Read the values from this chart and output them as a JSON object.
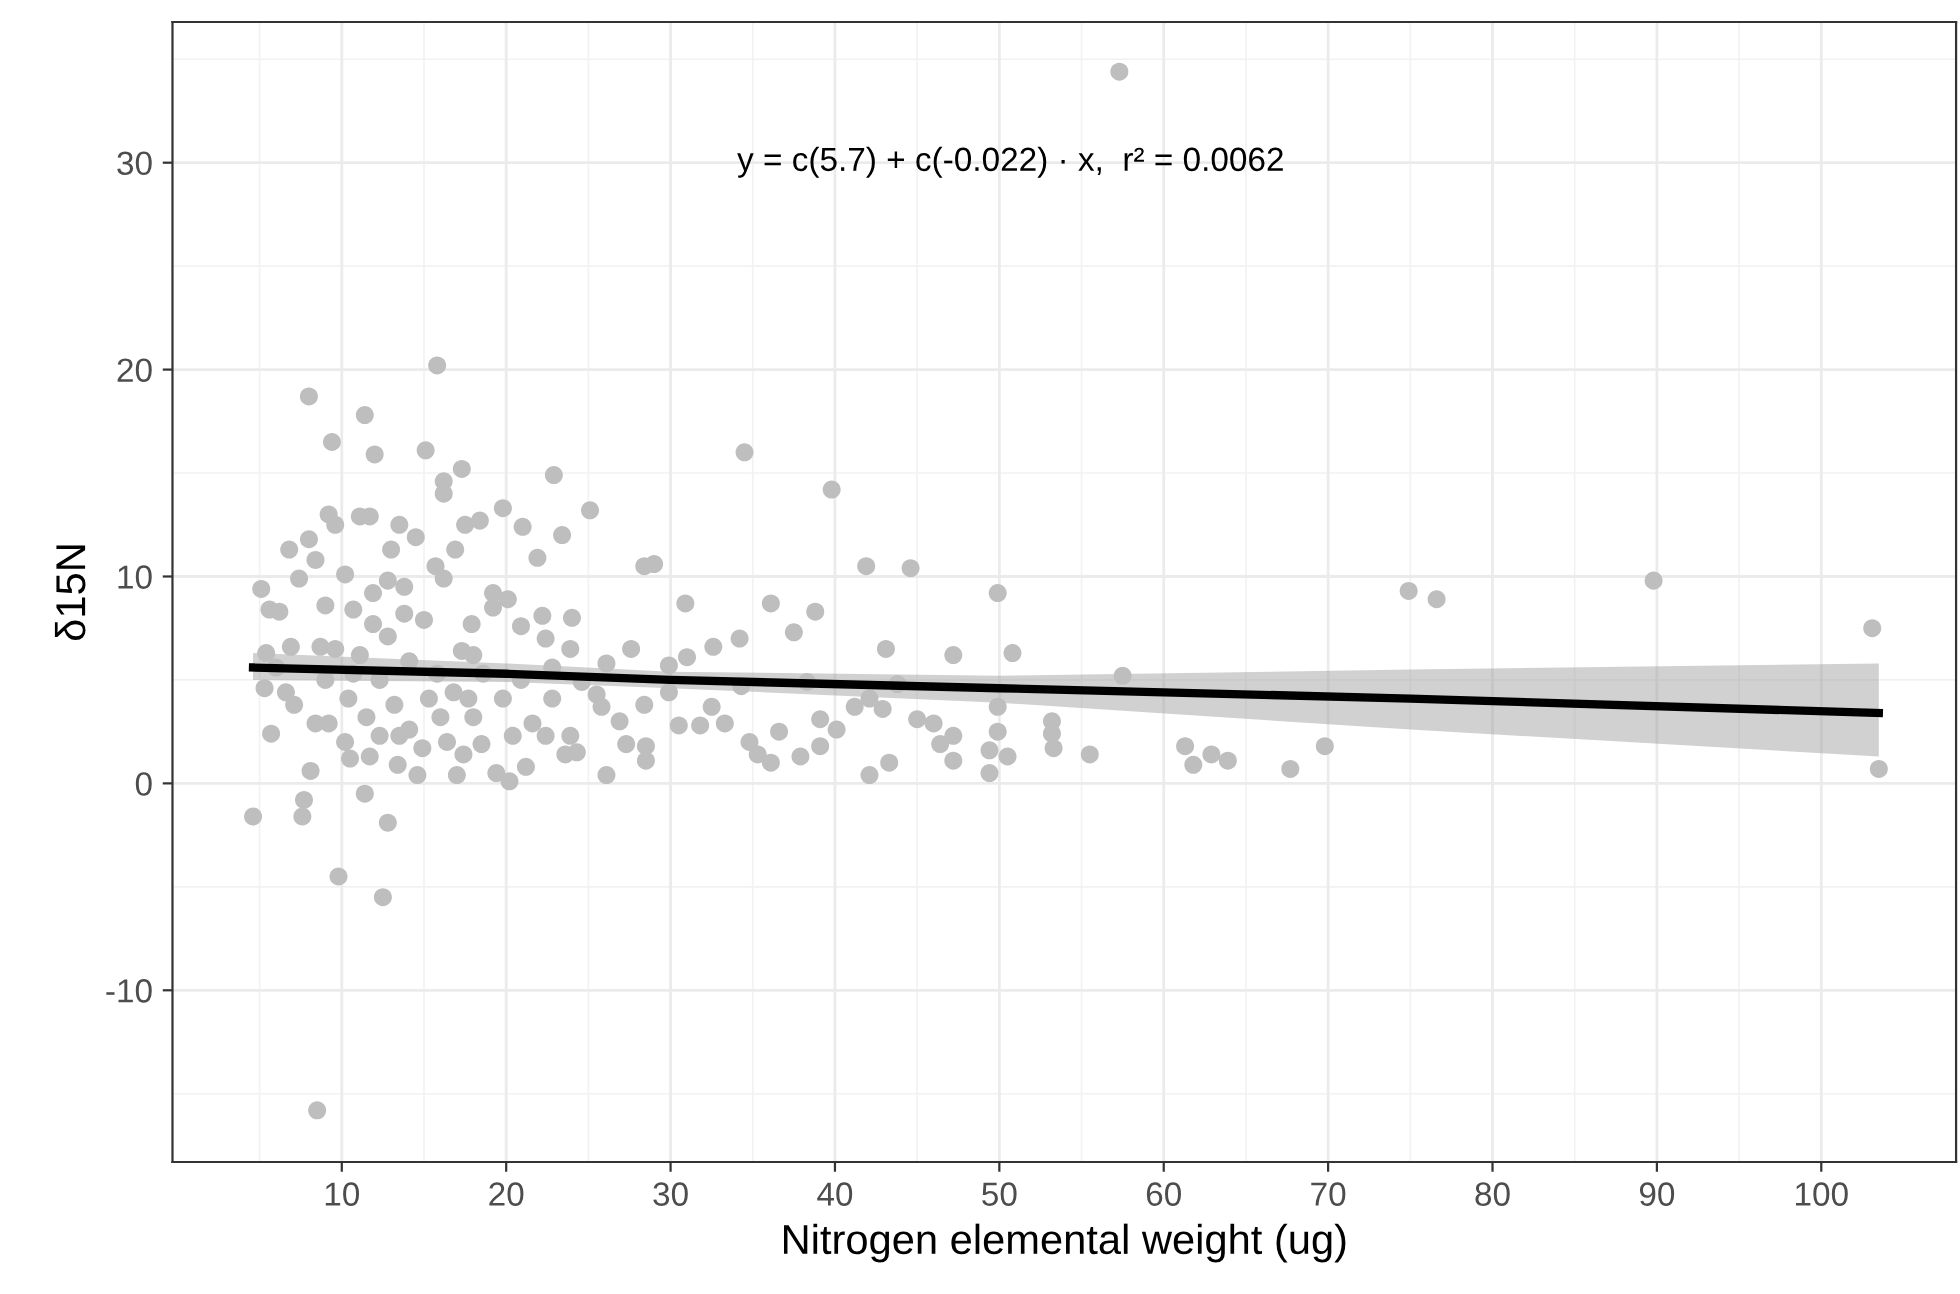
{
  "chart_data": {
    "type": "scatter",
    "xlabel": "Nitrogen elemental weight (ug)",
    "ylabel": "δ15N",
    "annotations": [
      "y = c(5.7) + c(-0.022) · x,  r² = 0.0062"
    ],
    "xlim": [
      -0.3,
      108.2
    ],
    "ylim": [
      -18.3,
      36.8
    ],
    "xticks": [
      10,
      20,
      30,
      40,
      50,
      60,
      70,
      80,
      90,
      100
    ],
    "yticks": [
      -10,
      0,
      10,
      20,
      30
    ],
    "grid": true,
    "marker": "circle",
    "series": [
      {
        "color": "#bebebe",
        "x": [
          4.6,
          8.5,
          8.0,
          11.4,
          15.8,
          9.4,
          12.0,
          15.1,
          17.3,
          16.2,
          16.2,
          22.9,
          25.1,
          19.8,
          21.0,
          23.4,
          21.9,
          34.5,
          39.8,
          57.3,
          41.9,
          44.6,
          49.9,
          74.9,
          76.6,
          89.8,
          103.1,
          103.5,
          57.5,
          69.8,
          67.7,
          63.9,
          62.9,
          61.8,
          61.3,
          55.5,
          53.3,
          53.2,
          53.2,
          50.8,
          49.9,
          49.9,
          49.4,
          49.4,
          50.5,
          47.2,
          47.2,
          47.2,
          46.4,
          46.0,
          45.0,
          43.1,
          43.3,
          42.1,
          42.9,
          42.1,
          38.8,
          37.5,
          36.1,
          30.9,
          28.4,
          29.0,
          34.2,
          32.6,
          39.1,
          37.9,
          36.1,
          40.1,
          39.1,
          34.8,
          35.3,
          33.3,
          31.8,
          30.5,
          28.5,
          28.5,
          26.1,
          27.3,
          26.9,
          32.5,
          36.6,
          41.2,
          43.8,
          38.3,
          34.3,
          29.9,
          31.0,
          27.6,
          26.1,
          25.5,
          24.6,
          23.9,
          24.0,
          22.2,
          20.1,
          19.2,
          19.2,
          20.9,
          22.4,
          23.9,
          24.3,
          23.6,
          21.2,
          20.2,
          19.4,
          21.6,
          20.4,
          18.5,
          17.4,
          17.0,
          14.6,
          13.4,
          11.7,
          10.5,
          10.2,
          11.4,
          12.8,
          7.7,
          7.6,
          12.5,
          9.8,
          8.1,
          5.7,
          5.3,
          5.4,
          5.1,
          5.6,
          6.2,
          6.8,
          7.4,
          8.0,
          8.4,
          9.2,
          9.6,
          10.2,
          11.1,
          11.7,
          13.0,
          12.8,
          13.8,
          13.5,
          14.5,
          15.7,
          16.2,
          17.5,
          18.4,
          16.9,
          15.0,
          17.9,
          17.3,
          11.9,
          10.7,
          9.0,
          8.7,
          6.9,
          6.0,
          7.1,
          8.4,
          9.0,
          10.4,
          11.5,
          12.3,
          13.2,
          14.1,
          15.3,
          16.0,
          16.4,
          17.7,
          18.6,
          19.8,
          15.8,
          14.1,
          11.1,
          11.9,
          12.8,
          13.8,
          18.0,
          20.9,
          22.8,
          18.0,
          14.9,
          12.3,
          9.2,
          6.6,
          9.6,
          10.7,
          13.5,
          16.8,
          22.4,
          22.8,
          25.8,
          28.4,
          29.9
        ],
        "values": [
          -1.6,
          -15.8,
          18.7,
          17.8,
          20.2,
          16.5,
          15.9,
          16.1,
          15.2,
          14.6,
          14.0,
          14.9,
          13.2,
          13.3,
          12.4,
          12.0,
          10.9,
          16.0,
          14.2,
          34.4,
          10.5,
          10.4,
          9.2,
          9.3,
          8.9,
          9.8,
          7.5,
          0.7,
          5.2,
          1.8,
          0.7,
          1.1,
          1.4,
          0.9,
          1.8,
          1.4,
          1.7,
          2.4,
          3.0,
          6.3,
          3.7,
          2.5,
          1.6,
          0.5,
          1.3,
          6.2,
          2.3,
          1.1,
          1.9,
          2.9,
          3.1,
          6.5,
          1.0,
          0.4,
          3.6,
          4.1,
          8.3,
          7.3,
          8.7,
          8.7,
          10.5,
          10.6,
          7.0,
          6.6,
          1.8,
          1.3,
          1.0,
          2.6,
          3.1,
          2.0,
          1.4,
          2.9,
          2.8,
          2.8,
          1.8,
          1.1,
          0.4,
          1.9,
          3.0,
          3.7,
          2.5,
          3.7,
          4.8,
          4.9,
          4.7,
          5.7,
          6.1,
          6.5,
          5.8,
          4.3,
          4.9,
          6.5,
          8.0,
          8.1,
          8.9,
          9.2,
          8.5,
          7.6,
          7.0,
          2.3,
          1.5,
          1.4,
          0.8,
          0.1,
          0.5,
          2.9,
          2.3,
          1.9,
          1.4,
          0.4,
          0.4,
          0.9,
          1.3,
          1.2,
          2.0,
          -0.5,
          -1.9,
          -0.8,
          -1.6,
          -5.5,
          -4.5,
          0.6,
          2.4,
          4.6,
          6.3,
          9.4,
          8.4,
          8.3,
          11.3,
          9.9,
          11.8,
          10.8,
          13.0,
          12.5,
          10.1,
          12.9,
          12.9,
          11.3,
          9.8,
          9.5,
          12.5,
          11.9,
          10.5,
          9.9,
          12.5,
          12.7,
          11.3,
          7.9,
          7.7,
          6.4,
          7.7,
          8.4,
          8.6,
          6.6,
          6.6,
          5.6,
          3.8,
          2.9,
          5.0,
          4.1,
          3.2,
          5.0,
          3.8,
          2.6,
          4.1,
          3.2,
          2.0,
          4.1,
          5.3,
          4.1,
          5.3,
          5.9,
          6.2,
          9.2,
          7.1,
          8.2,
          6.2,
          5.0,
          4.1,
          3.2,
          1.7,
          2.3,
          2.9,
          4.4,
          6.5,
          5.3,
          2.3,
          4.4,
          2.3,
          5.6,
          3.7,
          3.8,
          4.4
        ]
      },
      {
        "type": "line",
        "color": "#000000",
        "x": [
          4.6,
          20,
          30,
          50,
          75,
          103.5
        ],
        "values": [
          5.6,
          5.3,
          5.0,
          4.6,
          4.1,
          3.4
        ],
        "marker": "none",
        "lower": [
          5.0,
          4.9,
          4.6,
          3.9,
          2.6,
          1.3
        ],
        "upper": [
          6.3,
          5.8,
          5.4,
          5.2,
          5.5,
          5.8
        ]
      }
    ]
  }
}
